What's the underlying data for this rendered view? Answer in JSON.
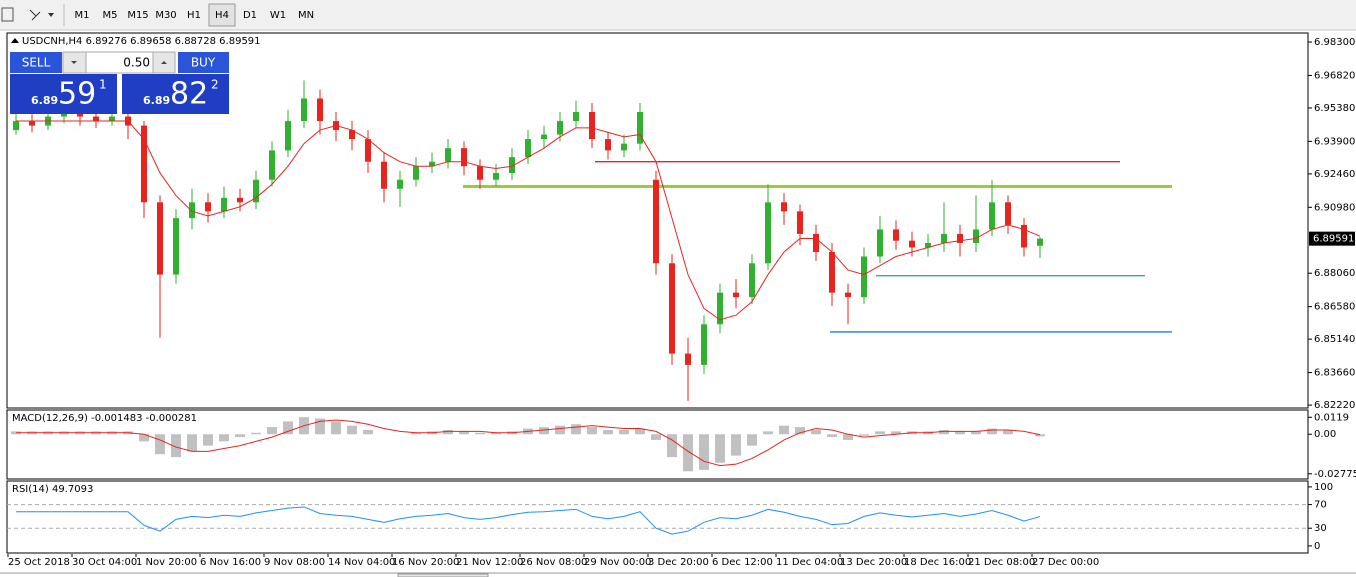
{
  "toolbar": {
    "timeframes": [
      "M1",
      "M5",
      "M15",
      "M30",
      "H1",
      "H4",
      "D1",
      "W1",
      "MN"
    ],
    "active": 5
  },
  "trade_panel": {
    "sell": "SELL",
    "buy": "BUY",
    "lot": "0.50",
    "sell_price": {
      "big": "6.89",
      "pips": "59",
      "fraction": "1"
    },
    "buy_price": {
      "big": "6.89",
      "pips": "82",
      "fraction": "2"
    }
  },
  "chart_data": [
    {
      "type": "candlestick",
      "title": "USDCNH,H4  6.89276 6.89658 6.88728 6.89591",
      "categories": [
        "25 Oct 2018",
        null,
        null,
        null,
        "30 Oct 04:00",
        null,
        null,
        null,
        "1 Nov 20:00",
        null,
        null,
        null,
        "6 Nov 16:00",
        null,
        null,
        null,
        "9 Nov 08:00",
        null,
        null,
        null,
        "14 Nov 04:00",
        null,
        null,
        null,
        "16 Nov 20:00",
        null,
        null,
        null,
        "21 Nov 12:00",
        null,
        null,
        null,
        "26 Nov 08:00",
        null,
        null,
        null,
        "29 Nov 00:00",
        null,
        null,
        null,
        "3 Dec 20:00",
        null,
        null,
        null,
        "6 Dec 12:00",
        null,
        null,
        null,
        "11 Dec 04:00",
        null,
        null,
        null,
        "13 Dec 20:00",
        null,
        null,
        null,
        "18 Dec 16:00",
        null,
        null,
        null,
        "21 Dec 08:00",
        null,
        null,
        null,
        "27 Dec 00:00"
      ],
      "open": [
        6.944,
        6.948,
        6.946,
        6.95,
        6.952,
        6.95,
        6.948,
        6.95,
        6.946,
        6.912,
        6.88,
        6.905,
        6.912,
        6.908,
        6.914,
        6.912,
        6.922,
        6.935,
        6.948,
        6.958,
        6.948,
        6.944,
        6.94,
        6.93,
        6.918,
        6.922,
        6.928,
        6.93,
        6.936,
        6.928,
        6.922,
        6.925,
        6.932,
        6.94,
        6.942,
        6.948,
        6.952,
        6.94,
        6.935,
        6.938,
        6.922,
        6.885,
        6.845,
        6.84,
        6.858,
        6.872,
        6.87,
        6.885,
        6.912,
        6.908,
        6.898,
        6.89,
        6.872,
        6.87,
        6.888,
        6.9,
        6.895,
        6.892,
        6.894,
        6.898,
        6.894,
        6.9,
        6.912,
        6.902,
        6.89276
      ],
      "high": [
        6.952,
        6.951,
        6.953,
        6.956,
        6.955,
        6.953,
        6.954,
        6.953,
        6.948,
        6.915,
        6.909,
        6.918,
        6.916,
        6.919,
        6.918,
        6.926,
        6.939,
        6.953,
        6.966,
        6.962,
        6.952,
        6.948,
        6.944,
        6.934,
        6.926,
        6.932,
        6.934,
        6.94,
        6.939,
        6.931,
        6.929,
        6.936,
        6.944,
        6.946,
        6.952,
        6.957,
        6.956,
        6.943,
        6.942,
        6.956,
        6.926,
        6.889,
        6.852,
        6.862,
        6.876,
        6.878,
        6.889,
        6.92,
        6.916,
        6.911,
        6.902,
        6.894,
        6.876,
        6.892,
        6.906,
        6.904,
        6.899,
        6.898,
        6.912,
        6.902,
        6.915,
        6.922,
        6.915,
        6.905,
        6.89658
      ],
      "low": [
        6.942,
        6.943,
        6.944,
        6.947,
        6.946,
        6.945,
        6.946,
        6.94,
        6.905,
        6.852,
        6.876,
        6.9,
        6.903,
        6.905,
        6.908,
        6.909,
        6.919,
        6.932,
        6.945,
        6.942,
        6.939,
        6.935,
        6.925,
        6.912,
        6.91,
        6.919,
        6.925,
        6.927,
        6.924,
        6.918,
        6.919,
        6.922,
        6.929,
        6.936,
        6.939,
        6.945,
        6.936,
        6.931,
        6.932,
        6.935,
        6.88,
        6.84,
        6.824,
        6.836,
        6.854,
        6.865,
        6.867,
        6.882,
        6.902,
        6.893,
        6.886,
        6.866,
        6.858,
        6.867,
        6.885,
        6.891,
        6.888,
        6.888,
        6.89,
        6.888,
        6.89,
        6.897,
        6.898,
        6.888,
        6.88728
      ],
      "close": [
        6.948,
        6.946,
        6.95,
        6.952,
        6.95,
        6.948,
        6.95,
        6.946,
        6.912,
        6.88,
        6.905,
        6.912,
        6.908,
        6.914,
        6.912,
        6.922,
        6.935,
        6.948,
        6.958,
        6.948,
        6.944,
        6.94,
        6.93,
        6.918,
        6.922,
        6.928,
        6.93,
        6.936,
        6.928,
        6.922,
        6.925,
        6.932,
        6.94,
        6.942,
        6.948,
        6.952,
        6.94,
        6.935,
        6.938,
        6.952,
        6.885,
        6.845,
        6.84,
        6.858,
        6.872,
        6.87,
        6.885,
        6.912,
        6.908,
        6.898,
        6.89,
        6.872,
        6.87,
        6.888,
        6.9,
        6.895,
        6.892,
        6.894,
        6.898,
        6.894,
        6.9,
        6.912,
        6.902,
        6.892,
        6.89591
      ],
      "up_color": "#2fb12f",
      "down_color": "#e8241f",
      "series": [
        {
          "color": "#e8241f",
          "values": [
            6.948,
            6.948,
            6.948,
            6.948,
            6.948,
            6.948,
            6.948,
            6.948,
            6.94,
            6.925,
            6.915,
            6.908,
            6.906,
            6.908,
            6.91,
            6.914,
            6.92,
            6.928,
            6.938,
            6.944,
            6.946,
            6.944,
            6.94,
            6.934,
            6.93,
            6.928,
            6.928,
            6.93,
            6.93,
            6.928,
            6.927,
            6.928,
            6.932,
            6.936,
            6.941,
            6.945,
            6.945,
            6.943,
            6.941,
            6.942,
            6.93,
            6.905,
            6.88,
            6.865,
            6.86,
            6.862,
            6.868,
            6.88,
            6.89,
            6.896,
            6.896,
            6.89,
            6.882,
            6.88,
            6.884,
            6.888,
            6.89,
            6.892,
            6.894,
            6.895,
            6.896,
            6.9,
            6.902,
            6.9,
            6.897
          ]
        }
      ],
      "levels": [
        {
          "value": 6.93,
          "color": "#e8241f"
        },
        {
          "value": 6.919,
          "color": "#9acd32"
        },
        {
          "value": 6.8795,
          "color": "#20b2aa"
        },
        {
          "value": 6.8546,
          "color": "#1e7fd6"
        }
      ],
      "ylim": [
        6.8209,
        6.987
      ],
      "yticks": [
        {
          "value": 6.983,
          "label": "6.98300"
        },
        {
          "value": 6.9682,
          "label": "6.96820"
        },
        {
          "value": 6.9538,
          "label": "6.95380"
        },
        {
          "value": 6.939,
          "label": "6.93900"
        },
        {
          "value": 6.9246,
          "label": "6.92460"
        },
        {
          "value": 6.9098,
          "label": "6.90980"
        },
        {
          "value": 6.8806,
          "label": "6.88060"
        },
        {
          "value": 6.8658,
          "label": "6.86580"
        },
        {
          "value": 6.8514,
          "label": "6.85140"
        },
        {
          "value": 6.8366,
          "label": "6.83660"
        },
        {
          "value": 6.8222,
          "label": "6.82220"
        }
      ],
      "last_price": 6.89591
    },
    {
      "type": "macd",
      "title": "MACD(12,26,9) -0.001483 -0.000281",
      "color": "#c0c0c0",
      "values": [
        0.002,
        0.002,
        0.002,
        0.002,
        0.002,
        0.002,
        0.002,
        0.002,
        -0.005,
        -0.014,
        -0.016,
        -0.012,
        -0.008,
        -0.005,
        -0.002,
        0.001,
        0.005,
        0.009,
        0.012,
        0.011,
        0.009,
        0.006,
        0.003,
        0.0,
        0.0,
        0.001,
        0.002,
        0.003,
        0.002,
        0.001,
        0.001,
        0.002,
        0.004,
        0.005,
        0.006,
        0.007,
        0.005,
        0.003,
        0.003,
        0.004,
        -0.004,
        -0.016,
        -0.026,
        -0.025,
        -0.02,
        -0.015,
        -0.008,
        0.002,
        0.006,
        0.005,
        0.003,
        -0.002,
        -0.004,
        -0.001,
        0.002,
        0.002,
        0.002,
        0.002,
        0.003,
        0.002,
        0.002,
        0.004,
        0.003,
        0.0,
        -0.001483
      ],
      "series": [
        {
          "color": "#e8241f",
          "values": [
            0.001,
            0.001,
            0.001,
            0.001,
            0.001,
            0.001,
            0.001,
            0.001,
            0.0,
            -0.004,
            -0.009,
            -0.012,
            -0.012,
            -0.01,
            -0.008,
            -0.005,
            -0.002,
            0.002,
            0.006,
            0.009,
            0.01,
            0.009,
            0.007,
            0.004,
            0.002,
            0.001,
            0.001,
            0.002,
            0.002,
            0.002,
            0.001,
            0.001,
            0.002,
            0.003,
            0.004,
            0.005,
            0.006,
            0.005,
            0.004,
            0.004,
            0.002,
            -0.004,
            -0.012,
            -0.019,
            -0.022,
            -0.021,
            -0.017,
            -0.011,
            -0.004,
            0.001,
            0.004,
            0.003,
            0.0,
            -0.002,
            -0.001,
            0.0,
            0.001,
            0.001,
            0.002,
            0.002,
            0.002,
            0.003,
            0.003,
            0.002,
            -0.000281
          ]
        }
      ],
      "ylim": [
        -0.0314,
        0.017
      ],
      "yticks": [
        0.0119,
        {
          "value": 0,
          "label": "0.00"
        },
        -0.027754
      ]
    },
    {
      "type": "rsi",
      "title": "RSI(14) 49.7093",
      "color": "#1e90ff",
      "values": [
        58,
        58,
        58,
        58,
        58,
        58,
        58,
        58,
        35,
        25,
        45,
        50,
        48,
        52,
        50,
        56,
        60,
        64,
        66,
        55,
        52,
        50,
        45,
        40,
        46,
        50,
        52,
        55,
        48,
        45,
        48,
        53,
        57,
        58,
        60,
        62,
        50,
        46,
        50,
        58,
        30,
        20,
        25,
        40,
        48,
        46,
        52,
        62,
        57,
        50,
        45,
        36,
        38,
        50,
        56,
        52,
        49,
        52,
        55,
        50,
        54,
        60,
        52,
        42,
        49.7093
      ],
      "levels": [
        70,
        30
      ],
      "ylim": [
        -12,
        110
      ],
      "yticks": [
        100,
        70,
        30,
        0
      ]
    }
  ]
}
